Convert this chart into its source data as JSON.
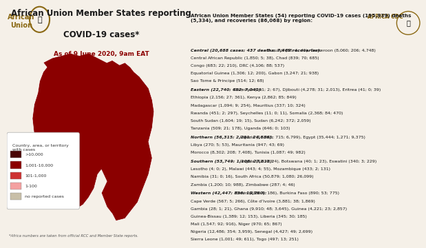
{
  "title_line1": "African Union Member States reporting",
  "title_line2": "COVID-19 cases*",
  "subtitle": "As of 9 June 2020, 9am EAT",
  "bg_color": "#f5f0e8",
  "title_color": "#1a1a1a",
  "subtitle_color": "#8b0000",
  "header_text": "African Union Member States (54) reporting COVID-19 cases (195,939) deaths\n(5,334), and recoveries (86,068) by region:",
  "regions": [
    {
      "label": "Central (20,688 cases; 437 deaths; 7,469 recoveries):",
      "countries": "Burundi (83; 1; 45), Cameroon (8,060; 206; 4,748), Central African Republic (1,850; 5; 38), Chad (839; 70; 685), Congo (683; 22; 210), DRC (4,106; 88; 537), Equatorial Guinea (1,306; 12; 200), Gabon (3,247; 21; 938), Sao Tome & Principe (514; 12; 68)"
    },
    {
      "label": "Eastern (22,740; 662; 7,040):",
      "countries": "Comoros (141; 2; 67), Djibouti (4,278; 31; 2,013), Eritrea (41; 0; 39), Ethiopia (2,156; 27; 361), Kenya (2,862; 85; 849), Madagascar (1,094; 9; 254), Mauritius (337; 10; 324), Rwanda (451; 2; 297), Seychelles (11; 0; 11), Somalia (2,368; 84; 470), South Sudan (1,604; 19; 15), Sudan (6,242; 372; 2,059), Tanzania (509; 21; 178), Uganda (646; 0; 103)"
    },
    {
      "label": "Northern (56,315; 2,291; 24,686):",
      "countries": "Algeria (10,265; 715; 6,799), Egypt (35,444; 1,271; 9,375), Libya (270; 5; 53), Mauritania (947; 43; 69), Morocco (8,302; 208; 7,408), Tunisia (1,087; 49; 982)"
    },
    {
      "label": "Southern (53,749; 1,108; 27,613):",
      "countries": "Angola (92; 4; 24), Botswana (40; 1; 23), Eswatini (340; 3; 229), Lesotho (4; 0; 2), Malawi (443; 4; 55), Mozambique (433; 2; 131), Namibia (31; 0; 16), South Africa (50,879; 1,080; 26,099), Zambia (1,200; 10; 988), Zimbabwe (287; 4; 46)"
    },
    {
      "label": "Western (42,447; 836; 19,260):",
      "countries": "Benin (288; 4; 186), Burkina Faso (890; 53; 775), Cape Verde (567; 5; 266), Côte d’Ivoire (3,881; 38; 1,869), Gambia (28; 1; 21), Ghana (9,910; 48; 3,645), Guinea (4,221; 23; 2,857), Guinea-Bissau (1,389; 12; 153), Liberia (345; 30; 185), Mali (1,547; 92; 916), Niger (970; 65; 867), Nigeria (12,486; 354; 3,959), Senegal (4,427; 49; 2,699), Sierra Leone (1,001; 49; 611), Togo (497; 13; 251)"
    }
  ],
  "legend_items": [
    {
      "label": ">10,000",
      "color": "#4a0404"
    },
    {
      "label": "1,001-10,000",
      "color": "#8b0000"
    },
    {
      "label": "101-1,000",
      "color": "#cd3333"
    },
    {
      "label": "1-100",
      "color": "#f4a0a0"
    },
    {
      "label": "no reported cases",
      "color": "#c8bfa8"
    }
  ],
  "footnote": "*Africa numbers are taken from official RCC and Member State reports.",
  "au_logo_color": "#8b6914",
  "africa_cdc_color": "#c0a060",
  "map_colors": {
    "very_dark": "#3d0000",
    "dark": "#8b0000",
    "medium": "#cd3333",
    "light": "#f4b8b8",
    "none": "#c8bfa8",
    "border": "#ffffff"
  }
}
